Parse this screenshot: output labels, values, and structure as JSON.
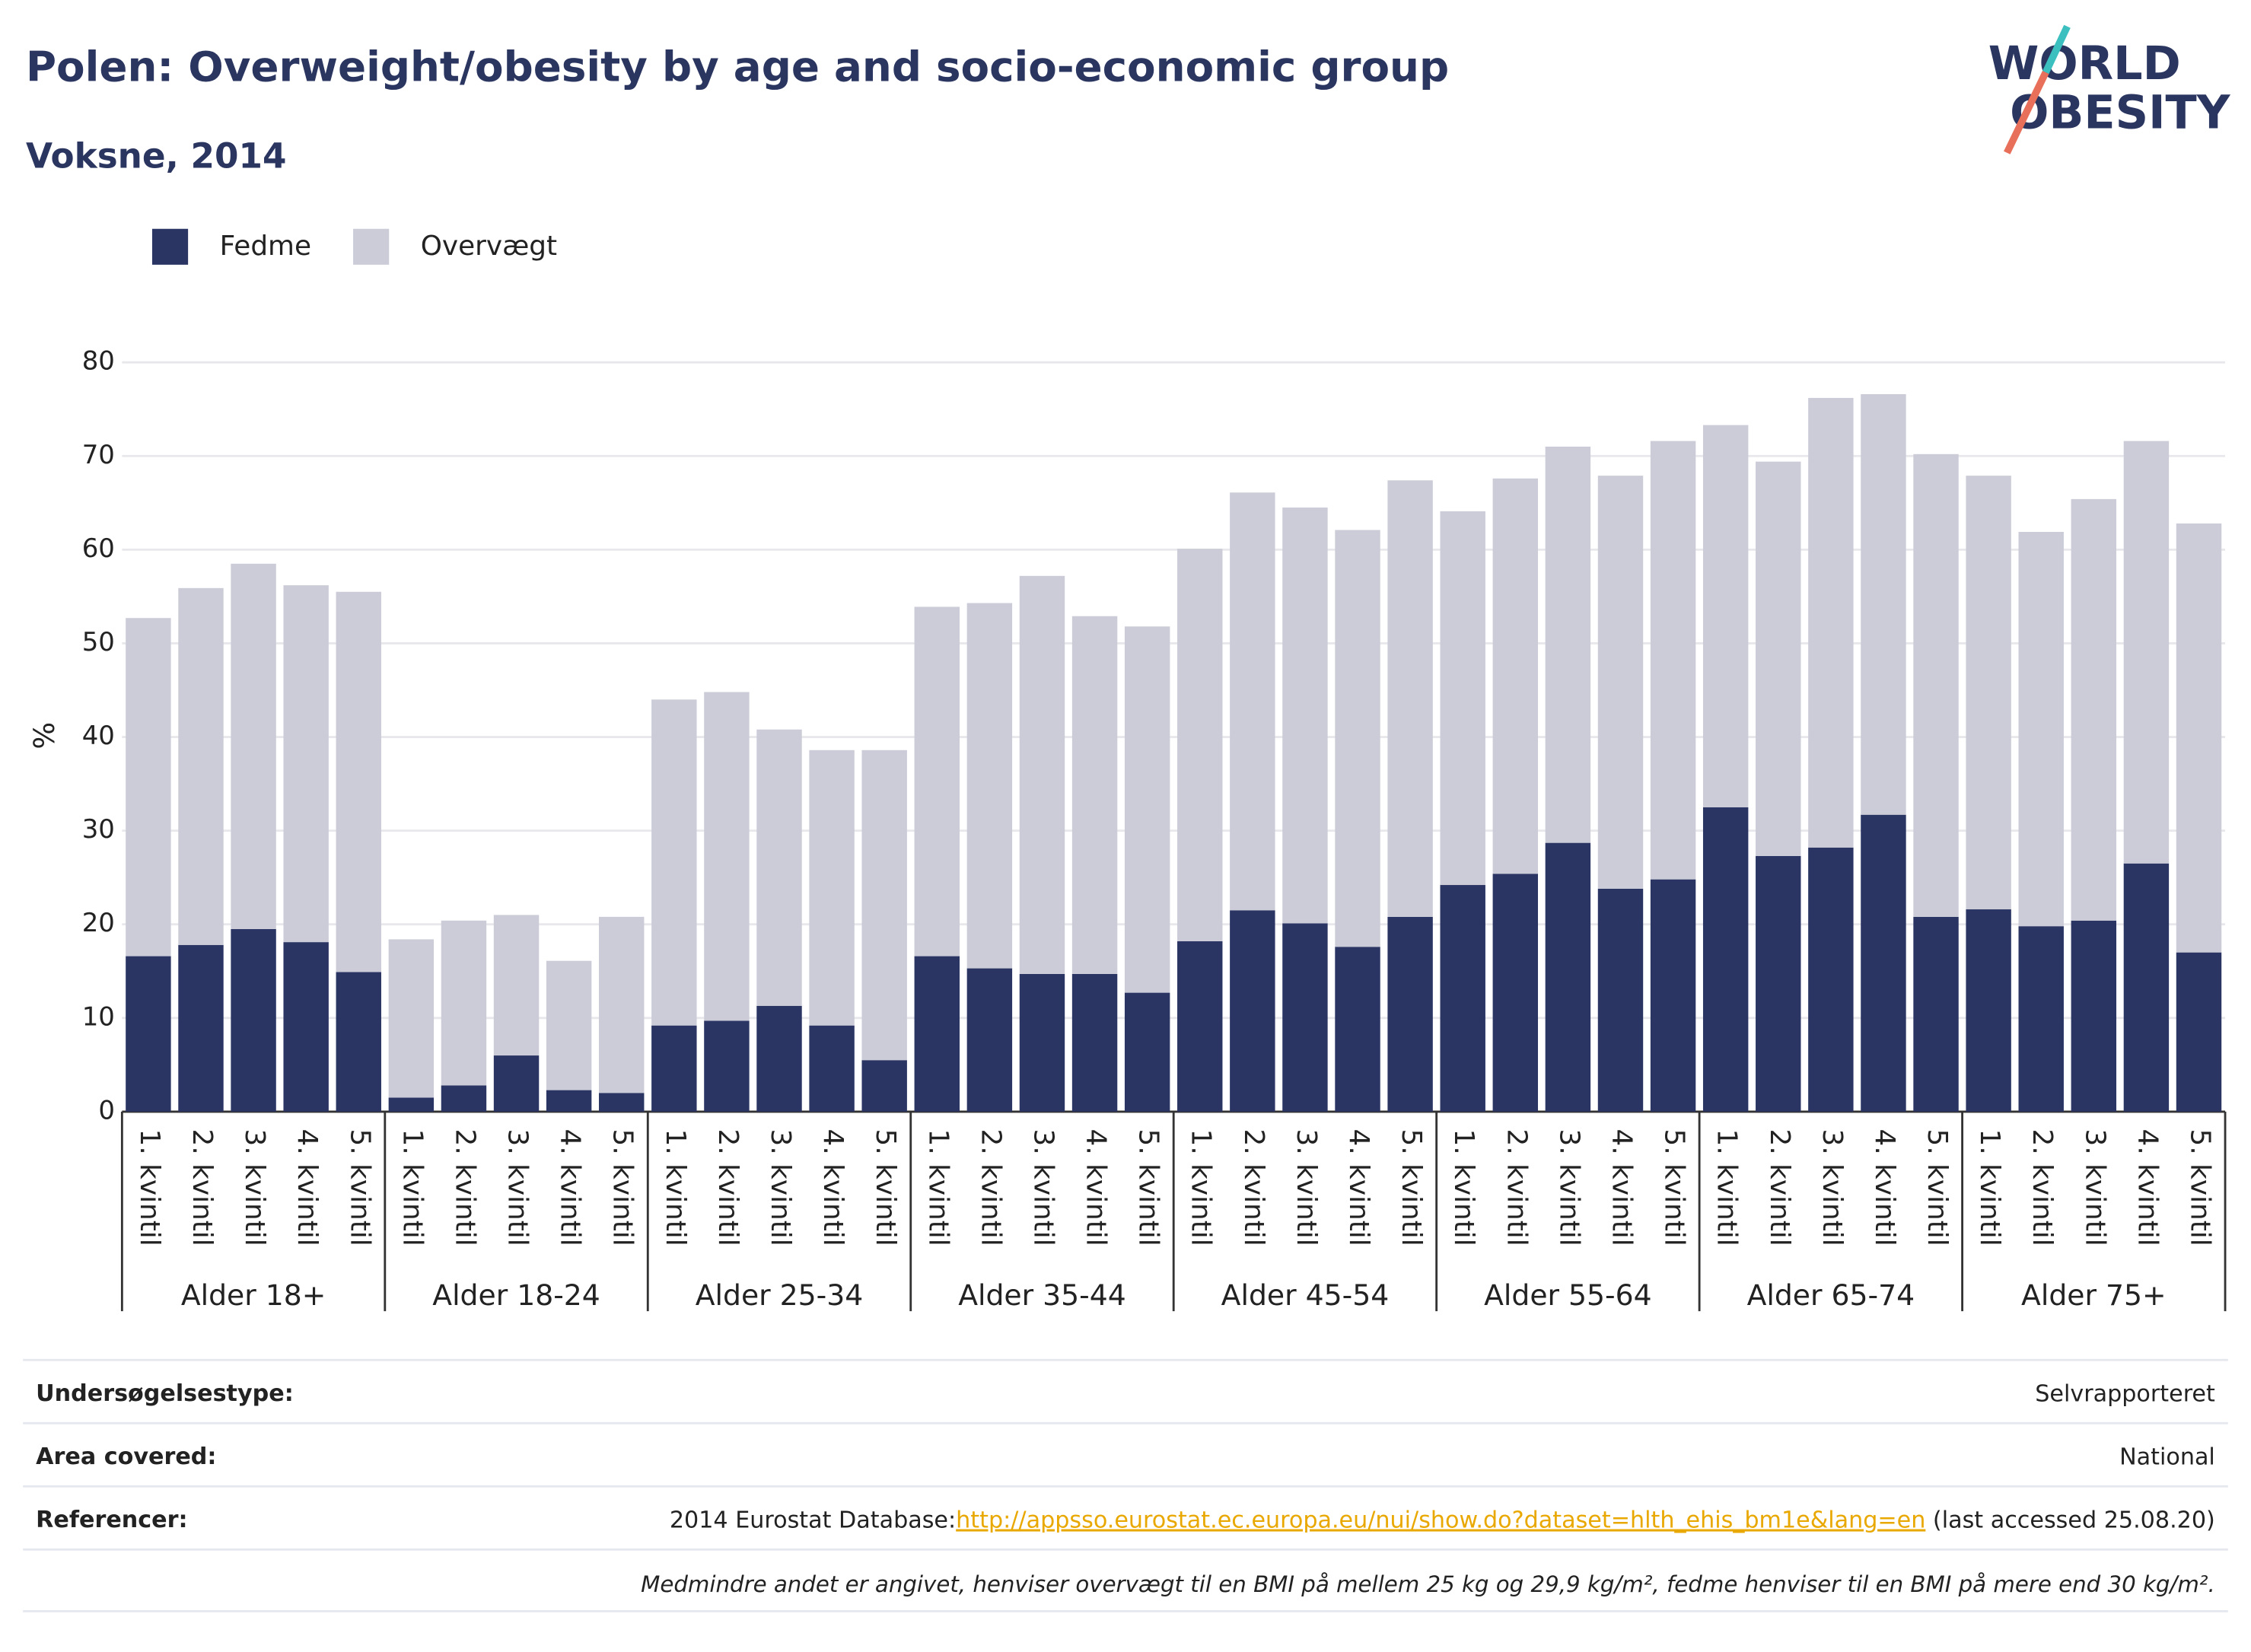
{
  "chart_data": {
    "type": "stacked_bar",
    "title": "Polen: Overweight/obesity by age and socio-economic group",
    "subtitle": "Voksne, 2014",
    "y_label": "%",
    "groups": [
      {
        "name": "Alder 18+",
        "categories": [
          "1. kvintil",
          "2. kvintil",
          "3. kvintil",
          "4. kvintil",
          "5. kvintil"
        ]
      },
      {
        "name": "Alder 18-24",
        "categories": [
          "1. kvintil",
          "2. kvintil",
          "3. kvintil",
          "4. kvintil",
          "5. kvintil"
        ]
      },
      {
        "name": "Alder 25-34",
        "categories": [
          "1. kvintil",
          "2. kvintil",
          "3. kvintil",
          "4. kvintil",
          "5. kvintil"
        ]
      },
      {
        "name": "Alder 35-44",
        "categories": [
          "1. kvintil",
          "2. kvintil",
          "3. kvintil",
          "4. kvintil",
          "5. kvintil"
        ]
      },
      {
        "name": "Alder 45-54",
        "categories": [
          "1. kvintil",
          "2. kvintil",
          "3. kvintil",
          "4. kvintil",
          "5. kvintil"
        ]
      },
      {
        "name": "Alder 55-64",
        "categories": [
          "1. kvintil",
          "2. kvintil",
          "3. kvintil",
          "4. kvintil",
          "5. kvintil"
        ]
      },
      {
        "name": "Alder 65-74",
        "categories": [
          "1. kvintil",
          "2. kvintil",
          "3. kvintil",
          "4. kvintil",
          "5. kvintil"
        ]
      },
      {
        "name": "Alder 75+",
        "categories": [
          "1. kvintil",
          "2. kvintil",
          "3. kvintil",
          "4. kvintil",
          "5. kvintil"
        ]
      }
    ],
    "series": [
      {
        "name": "Fedme",
        "color": "#2b3563",
        "values": [
          16.6,
          17.8,
          19.5,
          18.1,
          14.9,
          1.5,
          2.8,
          6.0,
          2.3,
          2.0,
          9.2,
          9.7,
          11.3,
          9.2,
          5.5,
          16.6,
          15.3,
          14.7,
          14.7,
          12.7,
          18.2,
          21.5,
          20.1,
          17.6,
          20.8,
          24.2,
          25.4,
          28.7,
          23.8,
          24.8,
          32.5,
          27.3,
          28.2,
          31.7,
          20.8,
          21.6,
          19.8,
          20.4,
          26.5,
          17.0
        ]
      },
      {
        "name": "Overvægt",
        "color": "#cbccd8",
        "values": [
          36.1,
          38.1,
          39.0,
          38.1,
          40.6,
          16.9,
          17.6,
          15.0,
          13.8,
          18.8,
          34.8,
          35.1,
          29.5,
          29.4,
          33.1,
          37.3,
          39.0,
          42.5,
          38.2,
          39.1,
          41.9,
          44.6,
          44.4,
          44.5,
          46.6,
          39.9,
          42.2,
          42.3,
          44.1,
          46.8,
          40.8,
          42.1,
          48.0,
          44.9,
          49.4,
          46.3,
          42.1,
          45.0,
          45.1,
          45.8
        ]
      }
    ],
    "ylim": [
      0,
      80
    ],
    "yticks": [
      0,
      10,
      20,
      30,
      40,
      50,
      60,
      70,
      80
    ],
    "grid": true,
    "legend": "top-left"
  },
  "logo": [
    "WORLD",
    "OBESITY"
  ],
  "info": [
    {
      "label": "Undersøgelsestype:",
      "value": "Selvrapporteret"
    },
    {
      "label": "Area covered:",
      "value": "National"
    },
    {
      "label": "Referencer:",
      "value": "2014 Eurostat Database:",
      "link": "http://appsso.eurostat.ec.europa.eu/nui/show.do?dataset=hlth_ehis_bm1e&lang=en",
      "after": " (last accessed 25.08.20)"
    }
  ],
  "note": "Medmindre andet er angivet, henviser overvægt til en BMI på mellem 25 kg og 29,9 kg/m², fedme henviser til en BMI på mere end 30 kg/m²."
}
